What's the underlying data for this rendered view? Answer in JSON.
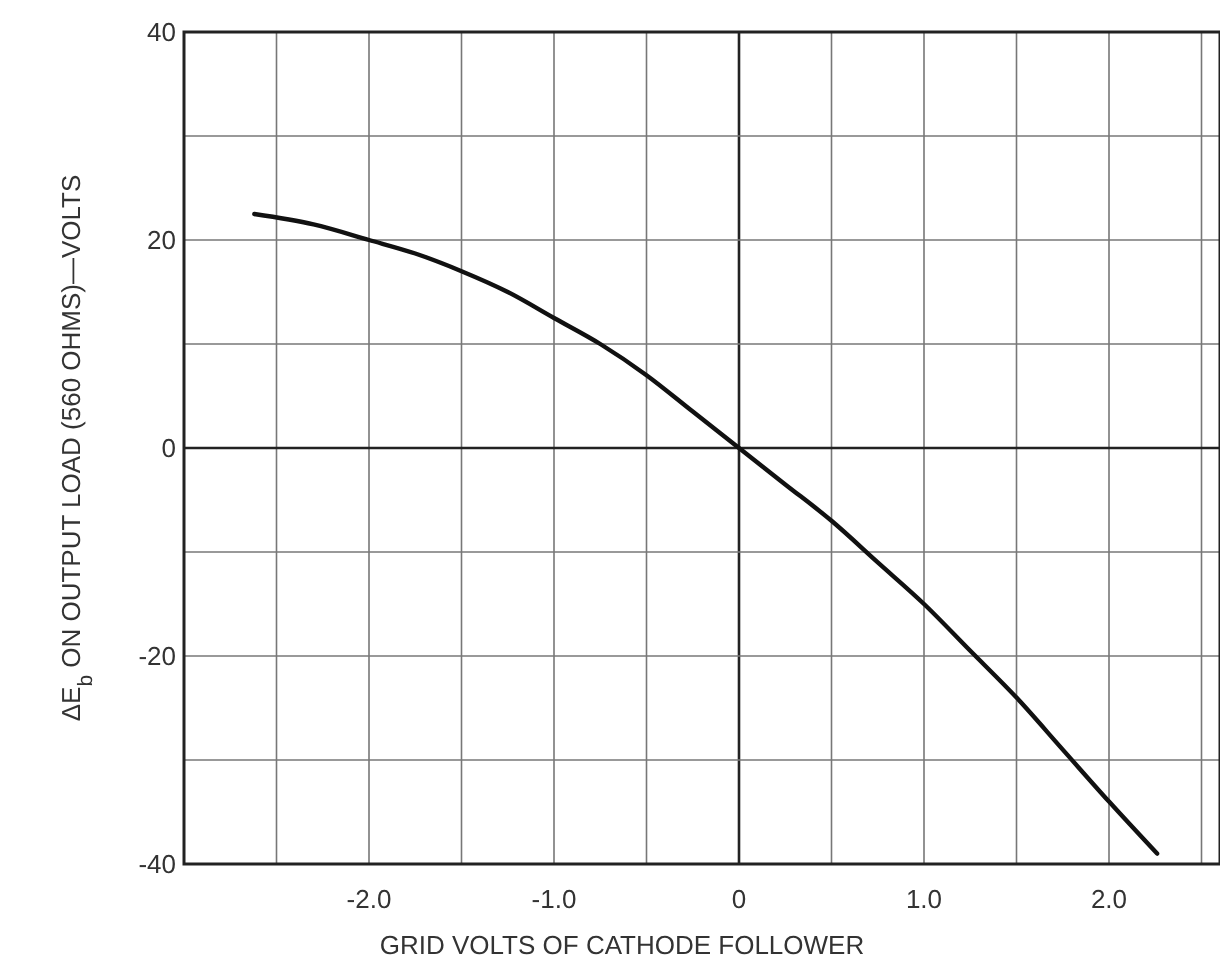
{
  "chart_data": {
    "type": "line",
    "xlabel": "GRID VOLTS OF CATHODE FOLLOWER",
    "ylabel": "ΔE$_{b}$ ON OUTPUT LOAD (560 OHMS)—VOLTS",
    "x": [
      -2.62,
      -2.3,
      -2.0,
      -1.75,
      -1.5,
      -1.25,
      -1.0,
      -0.75,
      -0.5,
      -0.25,
      0,
      0.25,
      0.5,
      0.75,
      1.0,
      1.25,
      1.5,
      1.75,
      2.0,
      2.26
    ],
    "series": [
      {
        "color": "#111111",
        "values": [
          22.5,
          21.5,
          20,
          18.7,
          17,
          15,
          12.5,
          10,
          7,
          3.5,
          0,
          -3.5,
          -7,
          -11,
          -15,
          -19.5,
          -24,
          -29,
          -34,
          -39
        ]
      }
    ],
    "xlim": [
      -3.0,
      2.6
    ],
    "ylim": [
      -40,
      40
    ],
    "xticks": [
      {
        "value": -2.5,
        "label": null
      },
      {
        "value": -2,
        "label": "-2.0"
      },
      {
        "value": -1.5,
        "label": null
      },
      {
        "value": -1,
        "label": "-1.0"
      },
      {
        "value": -0.5,
        "label": null
      },
      0,
      {
        "value": 0.5,
        "label": null
      },
      {
        "value": 1,
        "label": "1.0"
      },
      {
        "value": 1.5,
        "label": null
      },
      {
        "value": 2,
        "label": "2.0"
      },
      {
        "value": 2.5,
        "label": null
      }
    ],
    "yticks": [
      -40,
      {
        "value": -30,
        "label": null
      },
      -20,
      {
        "value": -10,
        "label": null
      },
      0,
      {
        "value": 10,
        "label": null
      },
      20,
      {
        "value": 30,
        "label": null
      },
      40
    ],
    "grid": true,
    "line_style": "solid",
    "marker": "none"
  }
}
